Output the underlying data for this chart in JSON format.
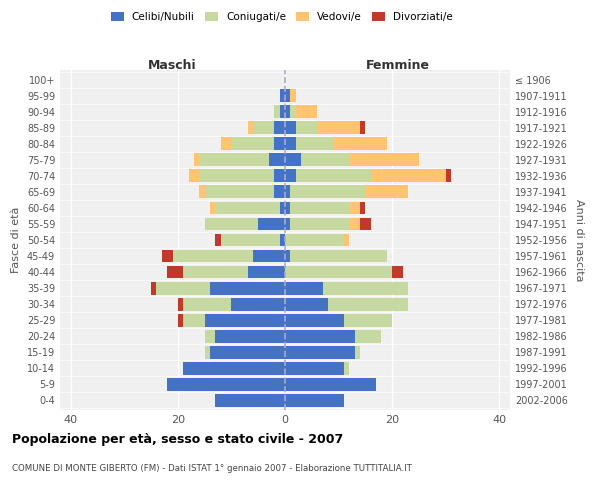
{
  "age_groups": [
    "0-4",
    "5-9",
    "10-14",
    "15-19",
    "20-24",
    "25-29",
    "30-34",
    "35-39",
    "40-44",
    "45-49",
    "50-54",
    "55-59",
    "60-64",
    "65-69",
    "70-74",
    "75-79",
    "80-84",
    "85-89",
    "90-94",
    "95-99",
    "100+"
  ],
  "birth_years": [
    "2002-2006",
    "1997-2001",
    "1992-1996",
    "1987-1991",
    "1982-1986",
    "1977-1981",
    "1972-1976",
    "1967-1971",
    "1962-1966",
    "1957-1961",
    "1952-1956",
    "1947-1951",
    "1942-1946",
    "1937-1941",
    "1932-1936",
    "1927-1931",
    "1922-1926",
    "1917-1921",
    "1912-1916",
    "1907-1911",
    "≤ 1906"
  ],
  "maschi": {
    "celibi": [
      13,
      22,
      19,
      14,
      13,
      15,
      10,
      14,
      7,
      6,
      1,
      5,
      1,
      2,
      2,
      3,
      2,
      2,
      1,
      1,
      0
    ],
    "coniugati": [
      0,
      0,
      0,
      1,
      2,
      4,
      9,
      10,
      12,
      15,
      11,
      10,
      12,
      13,
      14,
      13,
      8,
      4,
      1,
      0,
      0
    ],
    "vedovi": [
      0,
      0,
      0,
      0,
      0,
      0,
      0,
      0,
      0,
      0,
      0,
      0,
      1,
      1,
      2,
      1,
      2,
      1,
      0,
      0,
      0
    ],
    "divorziati": [
      0,
      0,
      0,
      0,
      0,
      1,
      1,
      1,
      3,
      2,
      1,
      0,
      0,
      0,
      0,
      0,
      0,
      0,
      0,
      0,
      0
    ]
  },
  "femmine": {
    "nubili": [
      11,
      17,
      11,
      13,
      13,
      11,
      8,
      7,
      0,
      1,
      0,
      1,
      1,
      1,
      2,
      3,
      2,
      2,
      1,
      1,
      0
    ],
    "coniugate": [
      0,
      0,
      1,
      1,
      5,
      9,
      15,
      16,
      20,
      18,
      11,
      11,
      11,
      14,
      14,
      9,
      7,
      4,
      1,
      0,
      0
    ],
    "vedove": [
      0,
      0,
      0,
      0,
      0,
      0,
      0,
      0,
      0,
      0,
      1,
      2,
      2,
      8,
      14,
      13,
      10,
      8,
      4,
      1,
      0
    ],
    "divorziate": [
      0,
      0,
      0,
      0,
      0,
      0,
      0,
      0,
      2,
      0,
      0,
      2,
      1,
      0,
      1,
      0,
      0,
      1,
      0,
      0,
      0
    ]
  },
  "colors": {
    "celibi_nubili": "#4472c4",
    "coniugati": "#c5d9a0",
    "vedovi": "#ffc471",
    "divorziati": "#c0392b"
  },
  "xlim": [
    -42,
    42
  ],
  "xticks": [
    -40,
    -20,
    0,
    20,
    40
  ],
  "xticklabels": [
    "40",
    "20",
    "0",
    "20",
    "40"
  ],
  "title": "Popolazione per età, sesso e stato civile - 2007",
  "subtitle": "COMUNE DI MONTE GIBERTO (FM) - Dati ISTAT 1° gennaio 2007 - Elaborazione TUTTITALIA.IT",
  "ylabel_left": "Fasce di età",
  "ylabel_right": "Anni di nascita",
  "label_maschi": "Maschi",
  "label_femmine": "Femmine",
  "legend_labels": [
    "Celibi/Nubili",
    "Coniugati/e",
    "Vedovi/e",
    "Divorziati/e"
  ],
  "bg_color": "#f0f0f0",
  "bar_height": 0.8
}
